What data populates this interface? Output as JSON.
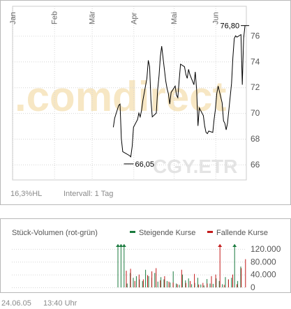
{
  "price_chart": {
    "months": [
      "Jan",
      "Feb",
      "Mär",
      "Apr",
      "Mai",
      "Jun"
    ],
    "watermark_brand": ".comdirect",
    "watermark_symbol": "CGY.ETR",
    "annotation_high": "76,80",
    "annotation_low": "66,05",
    "footer_range": "16,3%HL",
    "footer_interval": "Intervall: 1 Tag"
  },
  "volume_chart": {
    "title": "Stück-Volumen (rot-grün)",
    "legend_up": "Steigende Kurse",
    "legend_down": "Fallende Kurse"
  },
  "colors": {
    "up": "#1a7a3e",
    "down": "#c31a1a",
    "line": "#000000",
    "watermark_orange": "#f7e7c4",
    "watermark_grey": "#e4e4e4"
  },
  "footer": {
    "date": "24.06.05",
    "time": "13:40 Uhr"
  },
  "chart_data": [
    {
      "type": "line",
      "title": "",
      "x_axis": "date (2005)",
      "xlabels": [
        "Jan",
        "Feb",
        "Mär",
        "Apr",
        "Mai",
        "Jun"
      ],
      "ylim": [
        64.8,
        78.3
      ],
      "yticks": [
        66,
        68,
        70,
        72,
        74,
        76
      ],
      "ytick_labels": [
        "66",
        "68",
        "70",
        "72",
        "74",
        "76"
      ],
      "high": 76.8,
      "low": 66.05,
      "series": [
        {
          "x": [
            "2005-03-17",
            "2005-03-18",
            "2005-03-21",
            "2005-03-22",
            "2005-03-23",
            "2005-03-24",
            "2005-03-29",
            "2005-03-30",
            "2005-03-31",
            "2005-04-01",
            "2005-04-04",
            "2005-04-05",
            "2005-04-06",
            "2005-04-07",
            "2005-04-08",
            "2005-04-11",
            "2005-04-12",
            "2005-04-13",
            "2005-04-14",
            "2005-04-15",
            "2005-04-18",
            "2005-04-19",
            "2005-04-20",
            "2005-04-21",
            "2005-04-22",
            "2005-04-25",
            "2005-04-26",
            "2005-04-27",
            "2005-04-28",
            "2005-04-29",
            "2005-05-02",
            "2005-05-03",
            "2005-05-04",
            "2005-05-05",
            "2005-05-06",
            "2005-05-09",
            "2005-05-10",
            "2005-05-11",
            "2005-05-12",
            "2005-05-13",
            "2005-05-16",
            "2005-05-17",
            "2005-05-18",
            "2005-05-19",
            "2005-05-20",
            "2005-05-23",
            "2005-05-24",
            "2005-05-25",
            "2005-05-26",
            "2005-05-27",
            "2005-05-30",
            "2005-05-31",
            "2005-06-01",
            "2005-06-02",
            "2005-06-03",
            "2005-06-06",
            "2005-06-07",
            "2005-06-08",
            "2005-06-09",
            "2005-06-10",
            "2005-06-13",
            "2005-06-14",
            "2005-06-15",
            "2005-06-16",
            "2005-06-17",
            "2005-06-20",
            "2005-06-21",
            "2005-06-22",
            "2005-06-23"
          ],
          "values": [
            68.9,
            69.6,
            70.6,
            70.7,
            68.0,
            67.0,
            66.7,
            66.6,
            67.4,
            68.9,
            69.5,
            70.0,
            69.7,
            70.2,
            71.0,
            72.7,
            74.1,
            73.6,
            71.0,
            69.7,
            70.0,
            71.8,
            72.9,
            74.4,
            75.2,
            72.5,
            71.9,
            71.5,
            70.7,
            71.6,
            72.1,
            71.4,
            71.2,
            72.5,
            73.8,
            73.6,
            73.0,
            72.7,
            73.4,
            73.0,
            72.2,
            73.2,
            71.8,
            69.0,
            70.4,
            69.8,
            69.0,
            68.5,
            68.4,
            68.6,
            68.5,
            69.5,
            70.3,
            71.5,
            72.1,
            70.8,
            69.4,
            69.2,
            68.7,
            69.2,
            72.3,
            74.3,
            75.8,
            76.0,
            75.9,
            76.1,
            72.2,
            75.8,
            76.8
          ]
        }
      ]
    },
    {
      "type": "bar",
      "title": "Stück-Volumen (rot-grün)",
      "ylim": [
        0,
        135000
      ],
      "yticks": [
        0,
        40000,
        80000,
        120000
      ],
      "ytick_labels": [
        "0",
        "40.000",
        "80.000",
        "120.000"
      ],
      "series": [
        {
          "name": "Steigende Kurse",
          "values": [
            135000,
            135000,
            135000,
            12000,
            45000,
            30000,
            35000,
            25000,
            20000,
            55000,
            35000,
            30000,
            45000,
            18000,
            32000,
            25000,
            20000,
            15000,
            50000,
            12000,
            8000,
            40000,
            22000,
            28000,
            10000,
            14000,
            30000,
            9000,
            6000,
            26000,
            12000,
            11000,
            28000,
            20000,
            10000,
            32000,
            25000,
            30000,
            135000,
            20000,
            65000
          ]
        },
        {
          "name": "Fallende Kurse",
          "values": [
            52000,
            58000,
            20000,
            40000,
            25000,
            38000,
            50000,
            60000,
            22000,
            35000,
            18000,
            15000,
            10000,
            55000,
            14000,
            20000,
            42000,
            9000,
            14000,
            12000,
            35000,
            40000,
            135000,
            8000,
            25000,
            40000,
            10000,
            60000,
            88000
          ]
        }
      ]
    }
  ]
}
